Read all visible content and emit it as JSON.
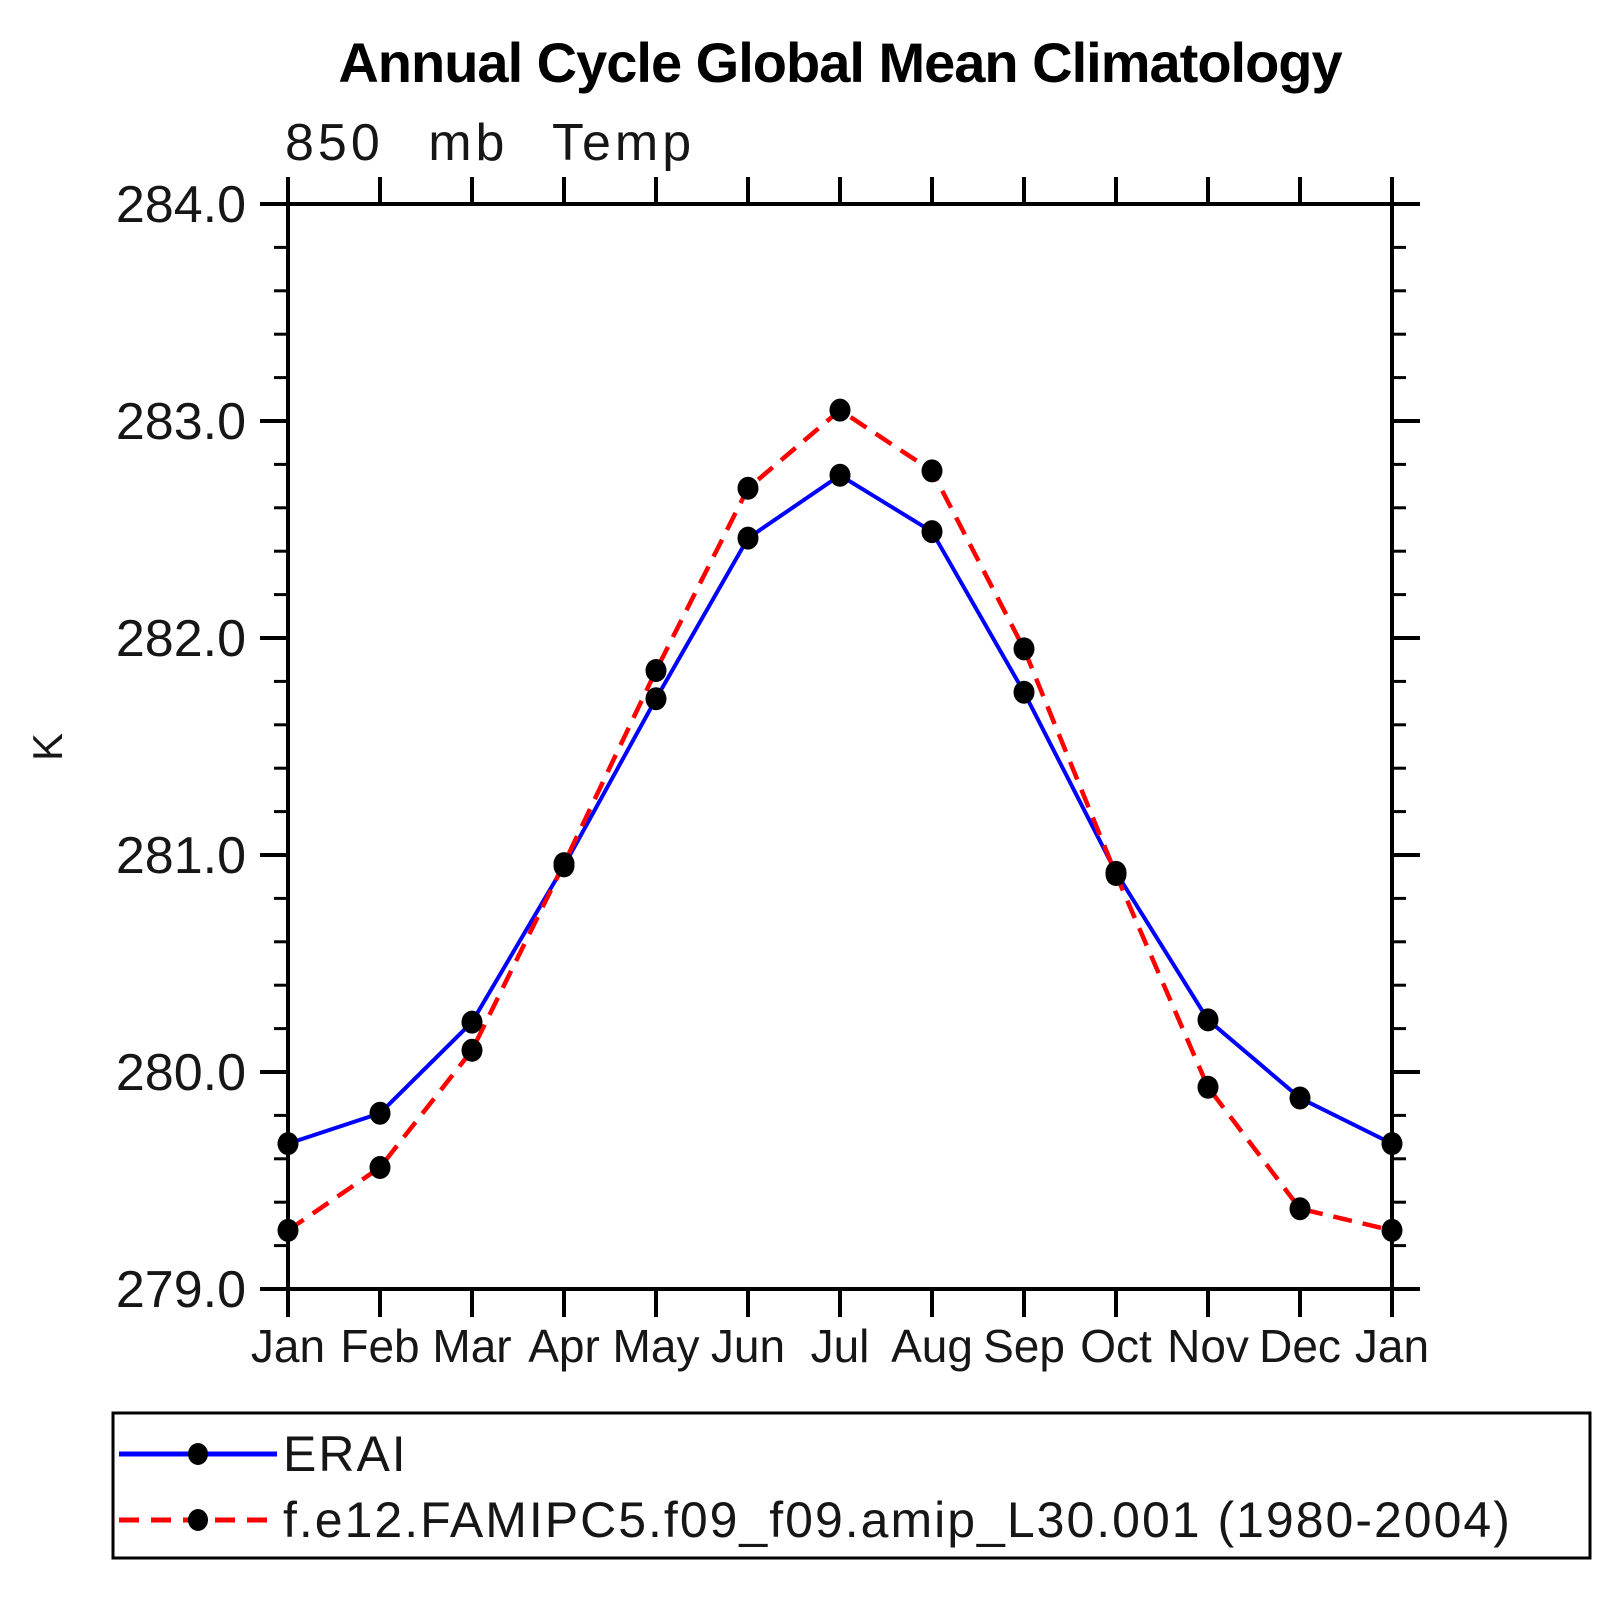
{
  "title": "Annual Cycle Global Mean Climatology",
  "subtitle": "850 mb Temp",
  "y_axis": {
    "title": "K",
    "tick_labels": [
      "284.0",
      "283.0",
      "282.0",
      "281.0",
      "280.0",
      "279.0"
    ],
    "min": 279.0,
    "max": 284.0,
    "major_step": 1.0,
    "minor_step": 0.2
  },
  "x_axis": {
    "tick_labels": [
      "Jan",
      "Feb",
      "Mar",
      "Apr",
      "May",
      "Jun",
      "Jul",
      "Aug",
      "Sep",
      "Oct",
      "Nov",
      "Dec",
      "Jan"
    ]
  },
  "colors": {
    "erai_line": "#0000ff",
    "model_line": "#ff0000",
    "marker": "#000000",
    "axis": "#000000"
  },
  "legend": {
    "entries": [
      {
        "label": "ERAI",
        "color": "#0000ff",
        "line_style": "solid",
        "marker": "black-dot"
      },
      {
        "label": "f.e12.FAMIPC5.f09_f09.amip_L30.001 (1980-2004)",
        "color": "#ff0000",
        "line_style": "dashed",
        "marker": "black-dot"
      }
    ]
  },
  "chart_data": {
    "type": "line",
    "title": "Annual Cycle Global Mean Climatology",
    "subtitle": "850 mb Temp",
    "ylabel": "K",
    "ylim": [
      279.0,
      284.0
    ],
    "y_major_step": 1.0,
    "y_minor_step": 0.2,
    "grid": false,
    "legend_position": "bottom",
    "categories": [
      "Jan",
      "Feb",
      "Mar",
      "Apr",
      "May",
      "Jun",
      "Jul",
      "Aug",
      "Sep",
      "Oct",
      "Nov",
      "Dec",
      "Jan"
    ],
    "series": [
      {
        "name": "ERAI",
        "color": "#0000ff",
        "line": "solid",
        "marker": "black-dot",
        "values": [
          279.67,
          279.81,
          280.23,
          280.95,
          281.72,
          282.46,
          282.75,
          282.49,
          281.75,
          280.92,
          280.24,
          279.88,
          279.67
        ]
      },
      {
        "name": "f.e12.FAMIPC5.f09_f09.amip_L30.001 (1980-2004)",
        "color": "#ff0000",
        "line": "dashed",
        "marker": "black-dot",
        "values": [
          279.27,
          279.56,
          280.1,
          280.96,
          281.85,
          282.69,
          283.05,
          282.77,
          281.95,
          280.91,
          279.93,
          279.37,
          279.27
        ]
      }
    ]
  }
}
